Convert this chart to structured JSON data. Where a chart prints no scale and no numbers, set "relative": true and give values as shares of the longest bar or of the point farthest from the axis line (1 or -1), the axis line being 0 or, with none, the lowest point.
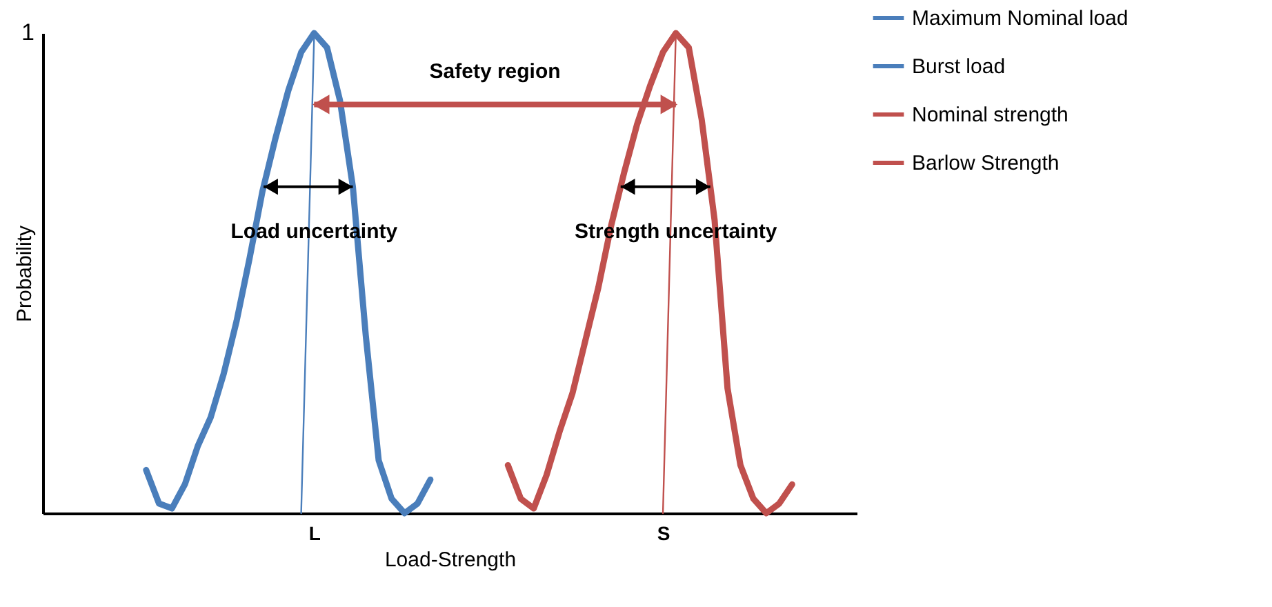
{
  "chart_data": {
    "type": "line",
    "relative": true,
    "xlabel": "Load-Strength",
    "ylabel": "Probability",
    "categories": [
      null,
      null,
      null,
      null,
      null,
      null,
      null,
      null,
      null,
      null,
      null,
      null,
      null,
      null,
      null,
      null,
      null,
      null,
      null,
      null,
      null,
      "L",
      null,
      null,
      null,
      null,
      null,
      null,
      null,
      null,
      null,
      null,
      null,
      null,
      null,
      null,
      null,
      null,
      null,
      null,
      null,
      null,
      null,
      null,
      null,
      null,
      null,
      null,
      "S",
      null,
      null,
      null,
      null,
      null,
      null,
      null,
      null,
      null,
      null,
      null,
      null,
      null,
      null,
      null
    ],
    "series": [
      {
        "name": "Maximum Nominal load",
        "color": "#4a7ebb",
        "values": [
          null,
          null,
          null,
          null,
          null,
          null,
          null,
          null,
          null,
          null,
          null,
          null,
          null,
          null,
          null,
          null,
          null,
          null,
          null,
          null,
          0,
          0.99,
          null,
          null,
          null,
          null,
          null,
          null,
          null,
          null,
          null,
          null,
          null,
          null,
          null,
          null,
          null,
          null,
          null,
          null,
          null,
          null,
          null,
          null,
          null,
          null,
          null,
          null,
          null,
          null,
          null,
          null,
          null,
          null,
          null,
          null,
          null,
          null,
          null,
          null,
          null,
          null,
          null,
          null
        ]
      },
      {
        "name": "Burst load",
        "color": "#4a7ebb",
        "values": [
          null,
          null,
          null,
          null,
          null,
          null,
          null,
          null,
          0.09,
          0.02,
          0.01,
          0.06,
          0.14,
          0.2,
          0.29,
          0.4,
          0.53,
          0.67,
          0.78,
          0.88,
          0.96,
          1.0,
          0.97,
          0.86,
          0.68,
          0.37,
          0.11,
          0.03,
          0.0,
          0.02,
          0.07,
          null,
          null,
          null,
          null,
          null,
          null,
          null,
          null,
          null,
          null,
          null,
          null,
          null,
          null,
          null,
          null,
          null,
          null,
          null,
          null,
          null,
          null,
          null,
          null,
          null,
          null,
          null,
          null,
          null,
          null,
          null,
          null,
          null
        ]
      },
      {
        "name": "Nominal strength",
        "color": "#c0504d",
        "values": [
          null,
          null,
          null,
          null,
          null,
          null,
          null,
          null,
          null,
          null,
          null,
          null,
          null,
          null,
          null,
          null,
          null,
          null,
          null,
          null,
          null,
          null,
          null,
          null,
          null,
          null,
          null,
          null,
          null,
          null,
          null,
          null,
          null,
          null,
          null,
          null,
          null,
          null,
          null,
          null,
          null,
          null,
          null,
          null,
          null,
          null,
          null,
          null,
          0,
          1.0,
          null,
          null,
          null,
          null,
          null,
          null,
          null,
          null,
          null,
          null,
          null,
          null,
          null,
          null
        ]
      },
      {
        "name": "Barlow Strength",
        "color": "#c0504d",
        "values": [
          null,
          null,
          null,
          null,
          null,
          null,
          null,
          null,
          null,
          null,
          null,
          null,
          null,
          null,
          null,
          null,
          null,
          null,
          null,
          null,
          null,
          null,
          null,
          null,
          null,
          null,
          null,
          null,
          null,
          null,
          null,
          null,
          null,
          null,
          null,
          null,
          0.1,
          0.03,
          0.01,
          0.08,
          0.17,
          0.25,
          0.36,
          0.47,
          0.6,
          0.71,
          0.81,
          0.89,
          0.96,
          1.0,
          0.97,
          0.82,
          0.61,
          0.26,
          0.1,
          0.03,
          0.0,
          0.02,
          0.06,
          null,
          null,
          null,
          null,
          null
        ]
      }
    ],
    "annotations": [
      "1",
      "Safety region",
      "Load uncertainty",
      "Strength uncertainty"
    ],
    "legend": "right",
    "grid": false,
    "marker": "none",
    "line_style": "solid"
  }
}
